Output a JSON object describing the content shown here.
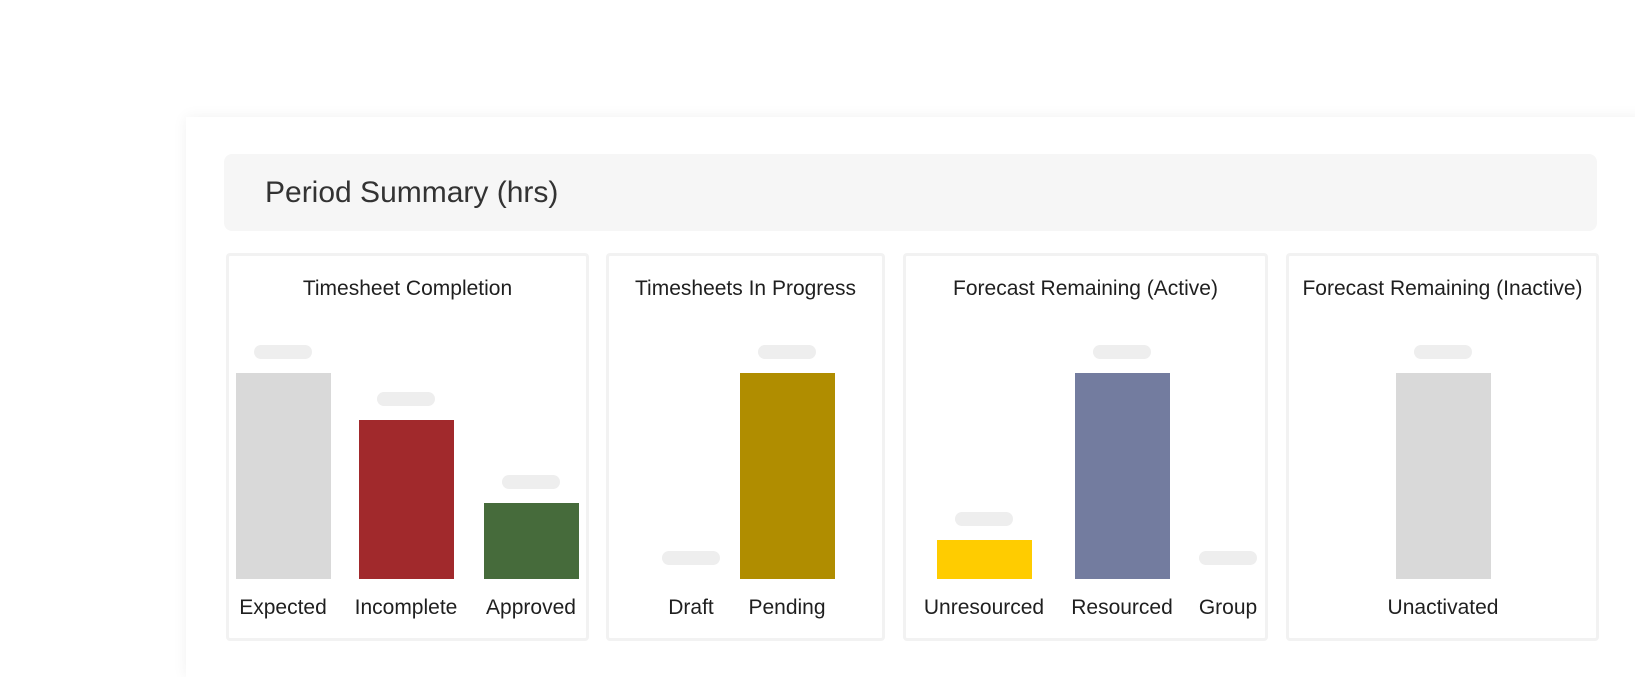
{
  "header": {
    "title": "Period Summary (hrs)"
  },
  "charts": [
    {
      "title": "Timesheet Completion",
      "bars": [
        {
          "label": "Expected",
          "value": 1.0,
          "color": "#d9d9d9"
        },
        {
          "label": "Incomplete",
          "value": 0.77,
          "color": "#a1292c"
        },
        {
          "label": "Approved",
          "value": 0.37,
          "color": "#466b3b"
        }
      ]
    },
    {
      "title": "Timesheets In Progress",
      "bars": [
        {
          "label": "Draft",
          "value": 0.0,
          "color": "#b08d00"
        },
        {
          "label": "Pending",
          "value": 1.0,
          "color": "#b08d00"
        }
      ]
    },
    {
      "title": "Forecast Remaining (Active)",
      "bars": [
        {
          "label": "Unresourced",
          "value": 0.19,
          "color": "#ffcc00"
        },
        {
          "label": "Resourced",
          "value": 1.0,
          "color": "#737c9f"
        },
        {
          "label": "Group",
          "value": 0.0,
          "color": "#737c9f"
        }
      ]
    },
    {
      "title": "Forecast Remaining (Inactive)",
      "bars": [
        {
          "label": "Unactivated",
          "value": 1.0,
          "color": "#d9d9d9"
        }
      ]
    }
  ]
}
